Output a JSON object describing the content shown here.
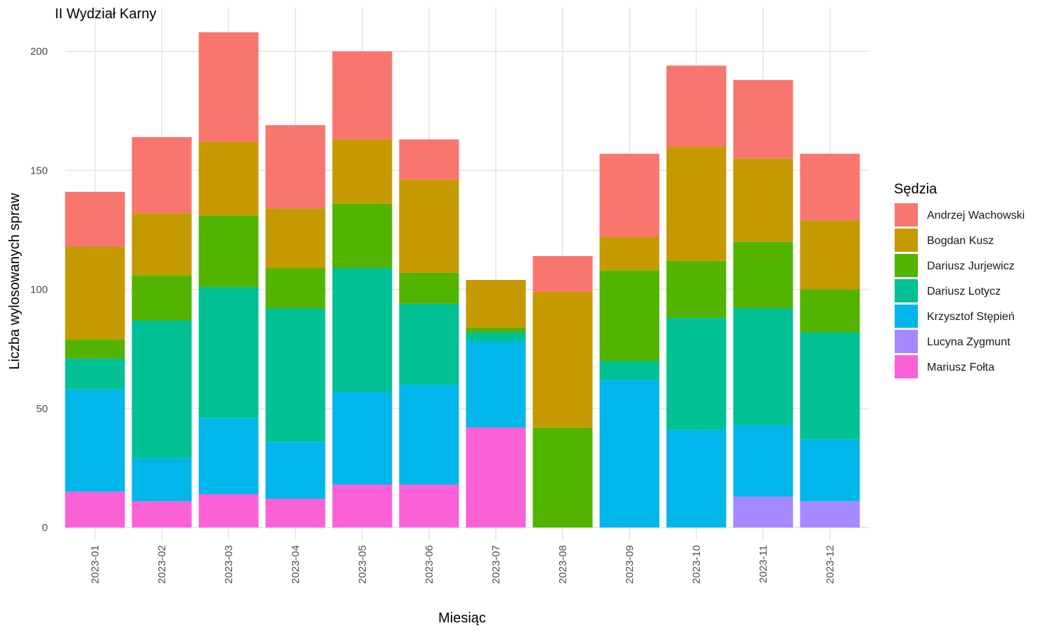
{
  "chart_data": {
    "type": "bar",
    "stacked": true,
    "title": "II Wydział Karny",
    "xlabel": "Miesiąc",
    "ylabel": "Liczba wylosowanych spraw",
    "ylim": [
      0,
      210
    ],
    "y_ticks": [
      0,
      50,
      100,
      150,
      200
    ],
    "grid": true,
    "legend_title": "Sędzia",
    "legend_position": "right",
    "categories": [
      "2023-01",
      "2023-02",
      "2023-03",
      "2023-04",
      "2023-05",
      "2023-06",
      "2023-07",
      "2023-08",
      "2023-09",
      "2023-10",
      "2023-11",
      "2023-12"
    ],
    "series": [
      {
        "name": "Andrzej Wachowski",
        "color": "#F8766D",
        "values": [
          23,
          32,
          46,
          35,
          37,
          17,
          0,
          15,
          35,
          34,
          33,
          28
        ]
      },
      {
        "name": "Bogdan Kusz",
        "color": "#C49A00",
        "values": [
          39,
          26,
          31,
          25,
          27,
          39,
          20,
          57,
          14,
          48,
          35,
          29
        ]
      },
      {
        "name": "Dariusz Jurjewicz",
        "color": "#53B400",
        "values": [
          8,
          19,
          30,
          17,
          27,
          13,
          2,
          42,
          38,
          24,
          28,
          18
        ]
      },
      {
        "name": "Dariusz Lotycz",
        "color": "#00C094",
        "values": [
          13,
          58,
          55,
          56,
          52,
          34,
          4,
          0,
          8,
          47,
          49,
          45
        ]
      },
      {
        "name": "Krzysztof Stępień",
        "color": "#00B6EB",
        "values": [
          43,
          18,
          32,
          24,
          39,
          42,
          36,
          0,
          62,
          41,
          30,
          26
        ]
      },
      {
        "name": "Lucyna Zygmunt",
        "color": "#A58AFF",
        "values": [
          0,
          0,
          0,
          0,
          0,
          0,
          0,
          0,
          0,
          0,
          13,
          11
        ]
      },
      {
        "name": "Mariusz Fołta",
        "color": "#FB61D7",
        "values": [
          15,
          11,
          14,
          12,
          18,
          18,
          42,
          0,
          0,
          0,
          0,
          0
        ]
      }
    ]
  }
}
